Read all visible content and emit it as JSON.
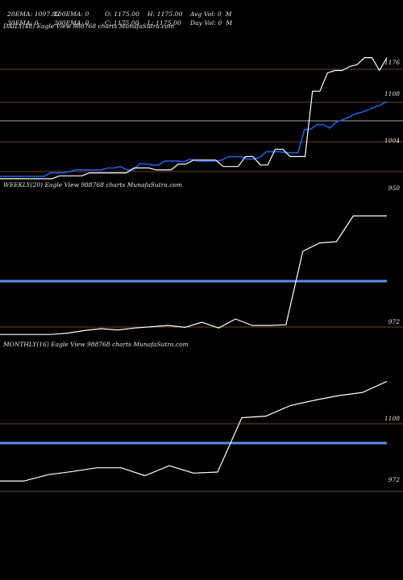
{
  "header": {
    "row1": [
      "20EMA: 1097.82",
      "100EMA: 0",
      "O: 1175.00",
      "H: 1175.00",
      "Avg Vol: 0  M"
    ],
    "row2": [
      "30EMA: 0",
      "200EMA: 0",
      "C: 1175.00",
      "L: 1175.00",
      "Day Vol: 0  M"
    ]
  },
  "colors": {
    "background": "#000000",
    "price_line": "#ffffff",
    "ema_line": "#1e5fe0",
    "level_line": "#5a8fe8",
    "grid_line": "#8a5a2a",
    "text": "#e8e8e8"
  },
  "chart_data": [
    {
      "type": "line",
      "title": "DAILY(48) Eagle  View  988768  charts MunafaSutra.com",
      "y_ticks": [
        "1176",
        "1108",
        "1004",
        "950"
      ],
      "ylim": [
        925,
        1195
      ],
      "series": [
        {
          "values": [
            935,
            935,
            935,
            935,
            935,
            935,
            935,
            935,
            942,
            942,
            942,
            945,
            948,
            948,
            948,
            948,
            948,
            952,
            952,
            955,
            948,
            948,
            960,
            960,
            958,
            958,
            966,
            966,
            966,
            965,
            970,
            966,
            966,
            966,
            966,
            968,
            975,
            975,
            975,
            970,
            970,
            974,
            985,
            985,
            985,
            983,
            983,
            983,
            1030,
            1031,
            1040,
            1040,
            1033,
            1045,
            1050,
            1055,
            1062,
            1065,
            1070,
            1075,
            1080,
            1087
          ]
        },
        {
          "values": [
            930,
            930,
            930,
            930,
            930,
            930,
            930,
            930,
            936,
            936,
            936,
            936,
            942,
            942,
            942,
            942,
            942,
            942,
            952,
            952,
            952,
            948,
            948,
            948,
            960,
            960,
            968,
            968,
            968,
            968,
            955,
            955,
            955,
            975,
            975,
            958,
            958,
            990,
            990,
            975,
            975,
            975,
            1108,
            1108,
            1145,
            1150,
            1150,
            1158,
            1162,
            1176,
            1176,
            1150,
            1176
          ]
        }
      ]
    },
    {
      "type": "line",
      "title": "WEEKLY(20) Eagle  View  988768  charts MunafaSutra.com",
      "y_ticks": [
        "972"
      ],
      "ylim": [
        960,
        1185
      ],
      "series": [
        {
          "values": [
            966,
            966,
            966,
            966,
            968,
            972,
            975,
            973,
            976,
            978,
            980,
            977,
            985,
            976,
            990,
            980,
            980,
            981,
            1095,
            1108,
            1110,
            1150,
            1150,
            1150
          ]
        }
      ]
    },
    {
      "type": "line",
      "title": "MONTHLY(16) Eagle  View  988768  charts MunafaSutra.com",
      "y_ticks": [
        "1108",
        "972"
      ],
      "ylim": [
        930,
        1205
      ],
      "series": [
        {
          "values": [
            965,
            965,
            977,
            983,
            990,
            990,
            975,
            994,
            980,
            982,
            1085,
            1088,
            1108,
            1118,
            1127,
            1133,
            1154
          ]
        }
      ]
    }
  ]
}
